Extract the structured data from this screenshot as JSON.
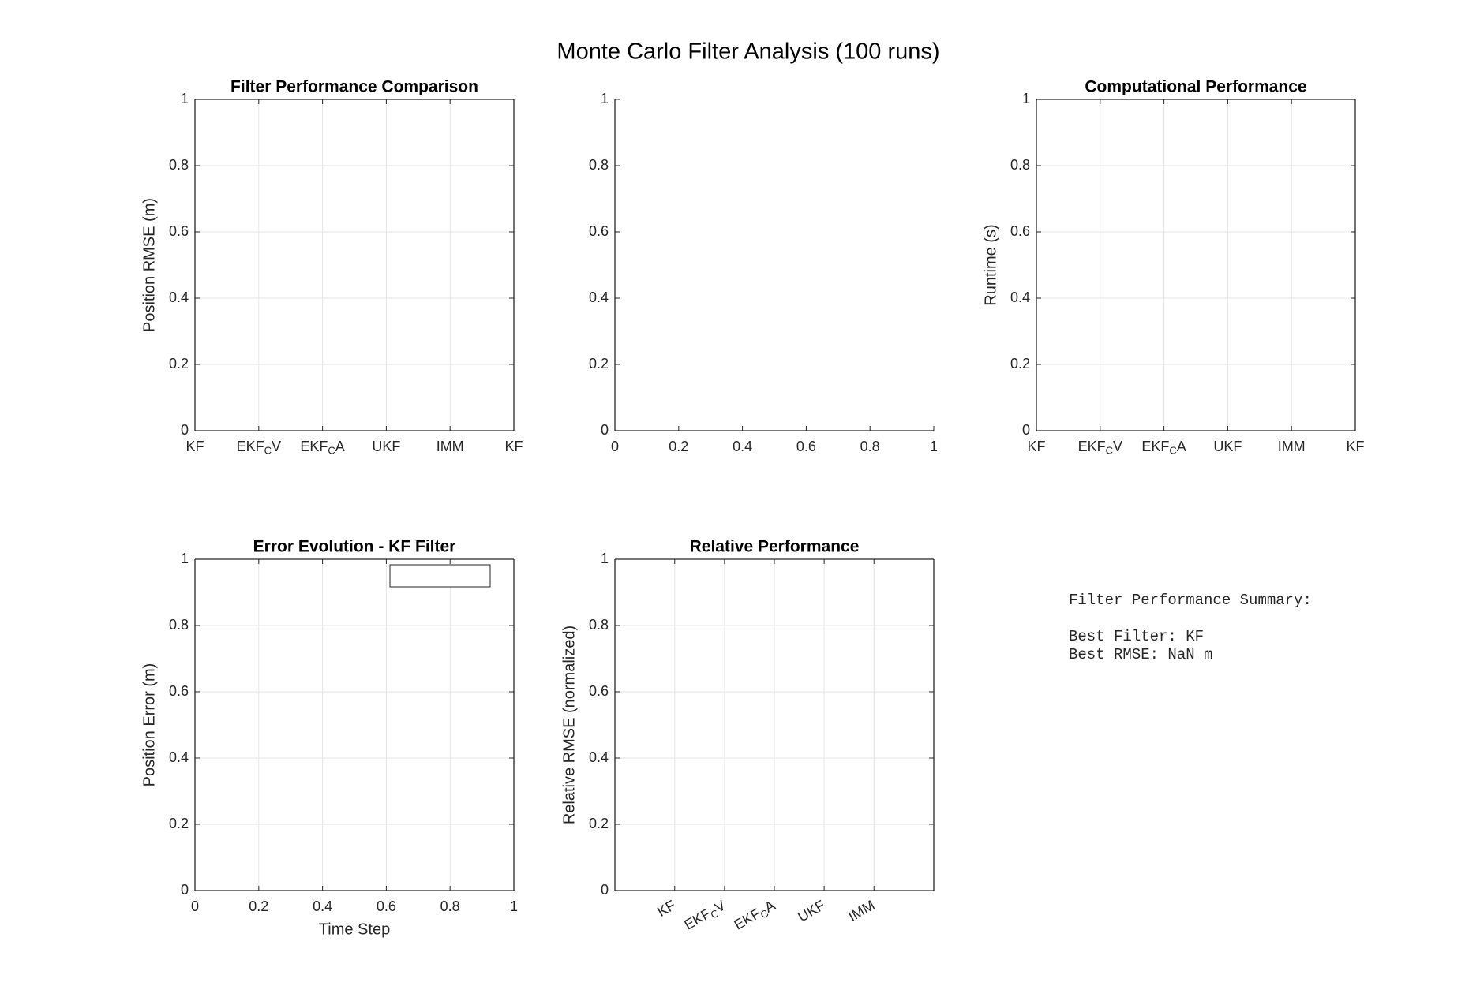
{
  "title": "Monte Carlo Filter Analysis (100 runs)",
  "chart_data": [
    {
      "type": "bar",
      "title": "Filter Performance Comparison",
      "ylabel": "Position RMSE (m)",
      "xlim": [
        0,
        1
      ],
      "ylim": [
        0,
        1
      ],
      "xticks": [
        {
          "value": 0,
          "label": "KF"
        },
        {
          "value": 0.2,
          "label": "EKF_CV"
        },
        {
          "value": 0.4,
          "label": "EKF_CA"
        },
        {
          "value": 0.6,
          "label": "UKF"
        },
        {
          "value": 0.8,
          "label": "IMM"
        },
        {
          "value": 1,
          "label": "KF"
        }
      ],
      "yticks": [
        0,
        0.2,
        0.4,
        0.6,
        0.8,
        1
      ],
      "grid": true,
      "box": true
    },
    {
      "type": "line",
      "xlim": [
        0,
        1
      ],
      "ylim": [
        0,
        1
      ],
      "xticks": [
        0,
        0.2,
        0.4,
        0.6,
        0.8,
        1
      ],
      "yticks": [
        0,
        0.2,
        0.4,
        0.6,
        0.8,
        1
      ],
      "grid": false,
      "box": false
    },
    {
      "type": "bar",
      "title": "Computational Performance",
      "ylabel": "Runtime (s)",
      "xlim": [
        0,
        1
      ],
      "ylim": [
        0,
        1
      ],
      "xticks": [
        {
          "value": 0,
          "label": "KF"
        },
        {
          "value": 0.2,
          "label": "EKF_CV"
        },
        {
          "value": 0.4,
          "label": "EKF_CA"
        },
        {
          "value": 0.6,
          "label": "UKF"
        },
        {
          "value": 0.8,
          "label": "IMM"
        },
        {
          "value": 1,
          "label": "KF"
        }
      ],
      "yticks": [
        0,
        0.2,
        0.4,
        0.6,
        0.8,
        1
      ],
      "grid": true,
      "box": true
    },
    {
      "type": "line",
      "title": "Error Evolution - KF Filter",
      "xlabel": "Time Step",
      "ylabel": "Position Error (m)",
      "xlim": [
        0,
        1
      ],
      "ylim": [
        0,
        1
      ],
      "xticks": [
        0,
        0.2,
        0.4,
        0.6,
        0.8,
        1
      ],
      "yticks": [
        0,
        0.2,
        0.4,
        0.6,
        0.8,
        1
      ],
      "grid": true,
      "box": true,
      "legend": "northeast"
    },
    {
      "type": "bar",
      "title": "Relative Performance",
      "ylabel": "Relative RMSE (normalized)",
      "xlim": [
        -0.2,
        6.2
      ],
      "ylim": [
        0,
        1
      ],
      "xticks": [
        {
          "value": 1,
          "label": "KF"
        },
        {
          "value": 2,
          "label": "EKF_CV"
        },
        {
          "value": 3,
          "label": "EKF_CA"
        },
        {
          "value": 4,
          "label": "UKF"
        },
        {
          "value": 5,
          "label": "IMM"
        }
      ],
      "yticks": [
        0,
        0.2,
        0.4,
        0.6,
        0.8,
        1
      ],
      "grid": true,
      "box": true,
      "xtick_rotation": 30
    }
  ],
  "summary": {
    "lines": [
      "Filter Performance Summary:",
      "Best Filter: KF",
      "Best RMSE: NaN m"
    ]
  }
}
